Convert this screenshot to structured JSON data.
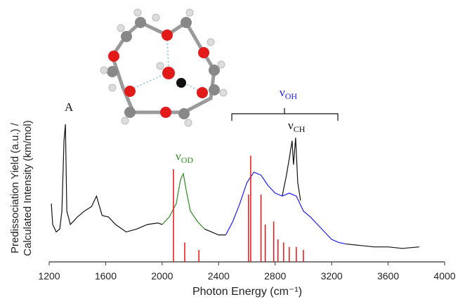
{
  "chart_data": {
    "type": "spectrum",
    "xlabel": "Photon Energy (cm⁻¹)",
    "ylabel": [
      "Predissociation Yield (a.u.) /",
      "Calculated Intensity (km/mol)"
    ],
    "xlim": [
      1200,
      4000
    ],
    "xticks": [
      1200,
      1600,
      2000,
      2400,
      2800,
      3200,
      3600,
      4000
    ],
    "ylim": [
      0,
      100
    ],
    "series": [
      {
        "color": "#111111",
        "style": "line",
        "x": [
          1215,
          1225,
          1250,
          1275,
          1290,
          1305,
          1315,
          1325,
          1350,
          1400,
          1450,
          1500,
          1535,
          1575,
          1620,
          1670,
          1745,
          1820,
          1895,
          1970,
          2000
        ],
        "values": [
          39,
          25,
          20,
          22,
          34,
          81,
          92,
          34,
          25,
          30,
          34,
          37,
          44,
          31,
          30,
          25,
          20,
          22,
          25,
          26,
          25
        ]
      },
      {
        "color": "#2e8b22",
        "style": "line",
        "x": [
          2000,
          2050,
          2100,
          2130,
          2150,
          2170,
          2200,
          2250,
          2300
        ],
        "values": [
          25,
          30,
          39,
          55,
          59,
          48,
          34,
          27,
          22
        ]
      },
      {
        "color": "#111111",
        "style": "line",
        "x": [
          2300,
          2350,
          2400,
          2450
        ],
        "values": [
          22,
          20,
          18,
          18
        ]
      },
      {
        "color": "#1a1aff",
        "style": "line",
        "x": [
          2450,
          2500,
          2550,
          2600,
          2650,
          2700,
          2750,
          2800,
          2850,
          2900,
          2950,
          3000,
          3050,
          3100,
          3150,
          3200,
          3250,
          3300
        ],
        "values": [
          18,
          27,
          39,
          53,
          60,
          58,
          51,
          46,
          44,
          46,
          44,
          34,
          30,
          25,
          20,
          15,
          13,
          12
        ]
      },
      {
        "color": "#111111",
        "style": "line",
        "x": [
          2850,
          2880,
          2900,
          2920,
          2930,
          2945,
          2960,
          2980
        ],
        "values": [
          44,
          58,
          69,
          81,
          65,
          83,
          53,
          41
        ]
      },
      {
        "color": "#111111",
        "style": "line",
        "x": [
          3300,
          3400,
          3500,
          3600,
          3700,
          3820
        ],
        "values": [
          12,
          11,
          10,
          10,
          9,
          10
        ]
      },
      {
        "color": "#ee1111",
        "style": "stick",
        "x": [
          2080,
          2160,
          2260,
          2612,
          2627,
          2700,
          2730,
          2790,
          2820,
          2860,
          2900,
          2950,
          3000
        ],
        "values": [
          62,
          13,
          8,
          45,
          71,
          45,
          25,
          27,
          15,
          13,
          10,
          10,
          8
        ]
      }
    ],
    "annotations": [
      {
        "text": "A",
        "color": "#111111"
      },
      {
        "text": "ν",
        "sub": "OH",
        "color": "#1a1aff"
      },
      {
        "text": "ν",
        "sub": "CH",
        "color": "#111111"
      },
      {
        "text": "ν",
        "sub": "OD",
        "color": "#2e8b22"
      }
    ]
  }
}
